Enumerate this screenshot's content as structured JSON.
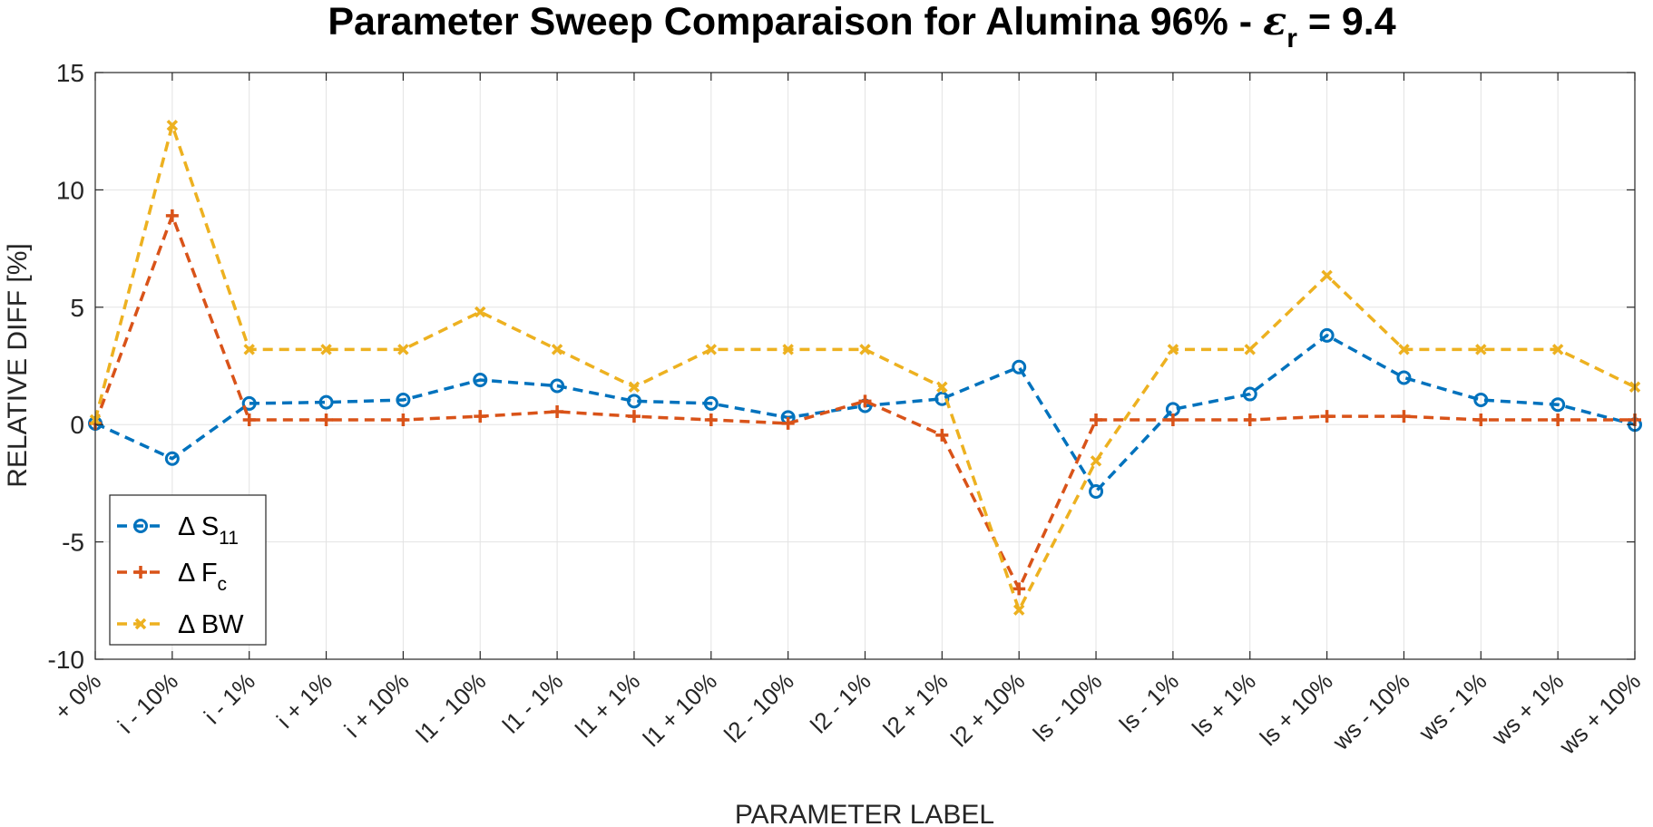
{
  "chart_data": {
    "type": "line",
    "title": {
      "main": "Parameter Sweep Comparaison for Alumina 96% - ",
      "symbol": "ε",
      "subscript": "r",
      "suffix": " = 9.4"
    },
    "xlabel": "PARAMETER LABEL",
    "ylabel": "RELATIVE DIFF [%]",
    "ylim": [
      -10,
      15
    ],
    "yticks": [
      "15",
      "10",
      "5",
      "0",
      "-5",
      "-10"
    ],
    "ytick_values": [
      15,
      10,
      5,
      0,
      -5,
      -10
    ],
    "grid": true,
    "legend_position": "bottom-left",
    "categories": [
      "+ 0%",
      "i - 10%",
      "i - 1%",
      "i + 1%",
      "i + 10%",
      "l1 - 10%",
      "l1 - 1%",
      "l1 + 1%",
      "l1 + 10%",
      "l2 - 10%",
      "l2 - 1%",
      "l2 + 1%",
      "l2 + 10%",
      "ls - 10%",
      "ls - 1%",
      "ls + 1%",
      "ls + 10%",
      "ws - 10%",
      "ws - 1%",
      "ws + 1%",
      "ws + 10%"
    ],
    "series": [
      {
        "label_main": "Δ S",
        "label_sub": "11",
        "color": "#0072BD",
        "marker": "circle",
        "values": [
          0.05,
          -1.45,
          0.9,
          0.95,
          1.05,
          1.9,
          1.65,
          1.0,
          0.9,
          0.3,
          0.8,
          1.1,
          2.45,
          -2.85,
          0.65,
          1.3,
          3.8,
          2.0,
          1.05,
          0.85,
          0.0
        ]
      },
      {
        "label_main": "Δ F",
        "label_sub": "c",
        "color": "#D95319",
        "marker": "plus",
        "values": [
          0.05,
          8.9,
          0.2,
          0.2,
          0.2,
          0.35,
          0.55,
          0.35,
          0.2,
          0.05,
          1.0,
          -0.45,
          -7.0,
          0.2,
          0.2,
          0.2,
          0.35,
          0.35,
          0.2,
          0.2,
          0.2
        ]
      },
      {
        "label_main": "Δ BW",
        "label_sub": "",
        "color": "#EDB120",
        "marker": "x",
        "values": [
          0.2,
          12.75,
          3.2,
          3.2,
          3.2,
          4.8,
          3.2,
          1.6,
          3.2,
          3.2,
          3.2,
          1.6,
          -7.9,
          -1.55,
          3.2,
          3.2,
          6.35,
          3.2,
          3.2,
          3.2,
          1.6
        ]
      }
    ]
  }
}
